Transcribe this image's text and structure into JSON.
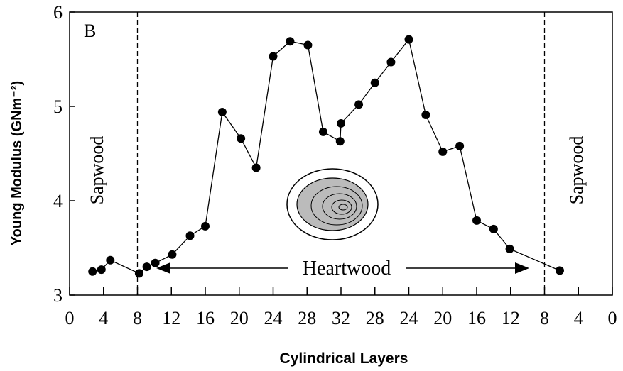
{
  "chart_data": {
    "type": "line",
    "panel_label": "B",
    "ylabel": "Young Modulus (GNm⁻²)",
    "xlabel": "Cylindrical Layers",
    "annotations": {
      "left_zone": "Sapwood",
      "right_zone": "Sapwood",
      "center_zone": "Heartwood"
    },
    "boundaries": [
      8,
      56
    ],
    "x": [
      2.7,
      3.75,
      4.8,
      8.2,
      9.1,
      10.1,
      12.1,
      14.2,
      16.0,
      18.0,
      20.2,
      22.0,
      24.0,
      26.0,
      28.1,
      29.9,
      31.9,
      32.0,
      34.1,
      36.0,
      37.9,
      40.0,
      42.0,
      44.0,
      46.0,
      48.0,
      50.0,
      51.9,
      57.8
    ],
    "series": [
      {
        "color": "#000000",
        "values": [
          3.25,
          3.27,
          3.37,
          3.23,
          3.3,
          3.34,
          3.43,
          3.63,
          3.73,
          4.94,
          4.66,
          4.35,
          5.53,
          5.69,
          5.65,
          4.73,
          4.63,
          4.82,
          5.02,
          5.25,
          5.47,
          5.71,
          4.91,
          4.52,
          4.58,
          3.79,
          3.7,
          3.49,
          3.26
        ]
      }
    ],
    "xlim": [
      0,
      64
    ],
    "ylim": [
      3,
      6
    ],
    "xticks": [
      0,
      4,
      8,
      12,
      16,
      20,
      24,
      28,
      32,
      {
        "value": 36,
        "label": "28"
      },
      {
        "value": 40,
        "label": "24"
      },
      {
        "value": 44,
        "label": "20"
      },
      {
        "value": 48,
        "label": "16"
      },
      {
        "value": 52,
        "label": "12"
      },
      {
        "value": 56,
        "label": "8"
      },
      {
        "value": 60,
        "label": "4"
      },
      {
        "value": 64,
        "label": "0"
      }
    ],
    "yticks": [
      3,
      4,
      5,
      6
    ]
  }
}
